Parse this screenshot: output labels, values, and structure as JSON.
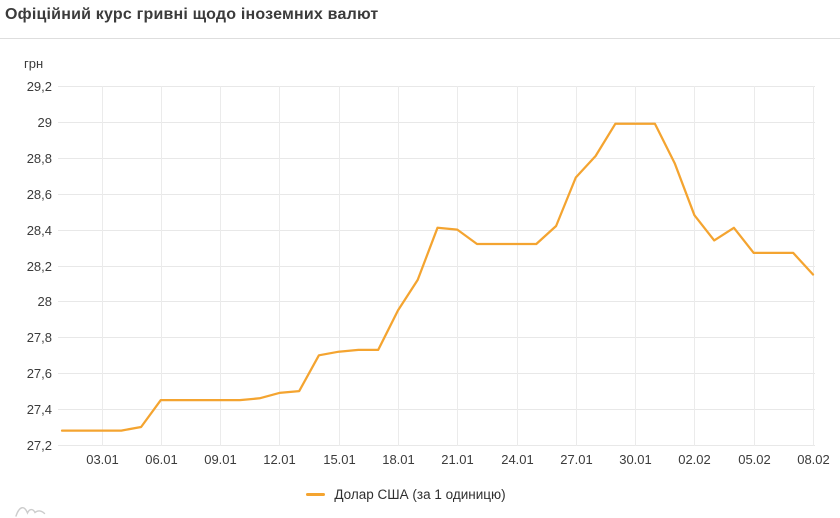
{
  "header": {
    "title": "Офіційний курс гривні щодо іноземних валют"
  },
  "chart_data": {
    "type": "line",
    "title": "Офіційний курс гривні щодо іноземних валют",
    "ylabel": "грн",
    "xlabel": "",
    "ylim": [
      27.2,
      29.2
    ],
    "grid": true,
    "legend_position": "bottom",
    "decimal_separator": ",",
    "x": [
      "01.01",
      "02.01",
      "03.01",
      "04.01",
      "05.01",
      "06.01",
      "07.01",
      "08.01",
      "09.01",
      "10.01",
      "11.01",
      "12.01",
      "13.01",
      "14.01",
      "15.01",
      "16.01",
      "17.01",
      "18.01",
      "19.01",
      "20.01",
      "21.01",
      "22.01",
      "23.01",
      "24.01",
      "25.01",
      "26.01",
      "27.01",
      "28.01",
      "29.01",
      "30.01",
      "31.01",
      "01.02",
      "02.02",
      "03.02",
      "04.02",
      "05.02",
      "06.02",
      "07.02",
      "08.02"
    ],
    "series": [
      {
        "name": "Долар США (за 1 одиницю)",
        "color": "#F4A430",
        "values": [
          27.28,
          27.28,
          27.28,
          27.28,
          27.3,
          27.45,
          27.45,
          27.45,
          27.45,
          27.45,
          27.46,
          27.49,
          27.5,
          27.7,
          27.72,
          27.73,
          27.73,
          27.95,
          28.12,
          28.41,
          28.4,
          28.32,
          28.32,
          28.32,
          28.32,
          28.42,
          28.69,
          28.81,
          28.99,
          28.99,
          28.99,
          28.77,
          28.48,
          28.34,
          28.41,
          28.27,
          28.27,
          28.27,
          28.15
        ]
      }
    ],
    "x_tick_indices": [
      2,
      5,
      8,
      11,
      14,
      17,
      20,
      23,
      26,
      29,
      32,
      35,
      38
    ],
    "x_tick_labels": [
      "03.01",
      "06.01",
      "09.01",
      "12.01",
      "15.01",
      "18.01",
      "21.01",
      "24.01",
      "27.01",
      "30.01",
      "02.02",
      "05.02",
      "08.02"
    ],
    "y_tick_values": [
      29.2,
      29.0,
      28.8,
      28.6,
      28.4,
      28.2,
      28.0,
      27.8,
      27.6,
      27.4,
      27.2
    ],
    "y_tick_labels": [
      "29,2",
      "29",
      "28,8",
      "28,6",
      "28,4",
      "28,2",
      "28",
      "27,8",
      "27,6",
      "27,4",
      "27,2"
    ]
  },
  "legend": {
    "items": [
      {
        "label": "Долар США (за 1 одиницю)",
        "color": "#F4A430"
      }
    ]
  },
  "watermark": {
    "icon": "wave-squiggle-icon"
  }
}
